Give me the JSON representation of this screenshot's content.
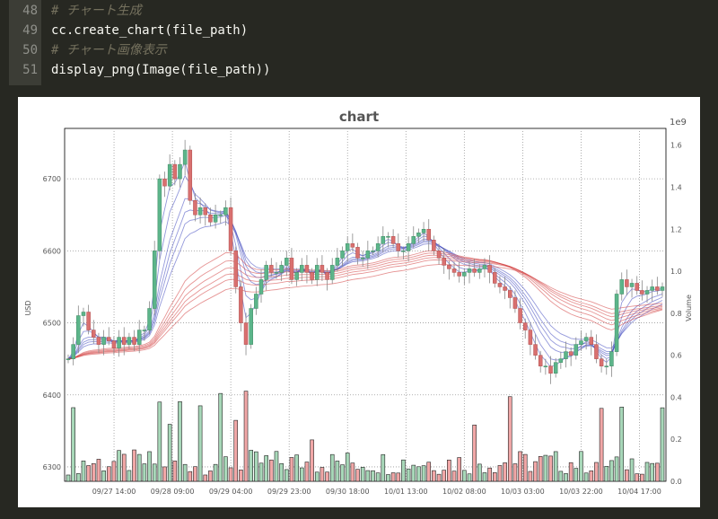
{
  "code": {
    "lines": [
      {
        "num": "48",
        "text": "# チャート生成",
        "comment": true
      },
      {
        "num": "49",
        "text": "cc.create_chart(file_path)",
        "comment": false
      },
      {
        "num": "50",
        "text": "# チャート画像表示",
        "comment": true
      },
      {
        "num": "51",
        "text": "display_png(Image(file_path))",
        "comment": false
      }
    ]
  },
  "chart_data": {
    "type": "line",
    "title": "chart",
    "ylabel": "USD",
    "y2label": "Volume",
    "y2_multiplier": "1e9",
    "ylim": [
      6280,
      6770
    ],
    "y2lim": [
      0,
      1.68
    ],
    "yticks": [
      "6300",
      "6400",
      "6500",
      "6600",
      "6700"
    ],
    "y2ticks": [
      "0.0",
      "0.2",
      "0.4",
      "0.6",
      "0.8",
      "1.0",
      "1.2",
      "1.4",
      "1.6"
    ],
    "xticks": [
      "09/27 14:00",
      "09/28 09:00",
      "09/29 04:00",
      "09/29 23:00",
      "09/30 18:00",
      "10/01 13:00",
      "10/02 08:00",
      "10/03 03:00",
      "10/03 22:00",
      "10/04 17:00"
    ],
    "grid": true,
    "series": [
      {
        "values": [
          6450,
          6470,
          6510,
          6515,
          6490,
          6480,
          6470,
          6480,
          6475,
          6465,
          6480,
          6470,
          6480,
          6470,
          6490,
          6490,
          6520,
          6600,
          6700,
          6690,
          6720,
          6700,
          6720,
          6740,
          6670,
          6650,
          6660,
          6650,
          6640,
          6650,
          6650,
          6660,
          6600,
          6550,
          6500,
          6470,
          6520,
          6540,
          6560,
          6580,
          6570,
          6570,
          6580,
          6590,
          6560,
          6570,
          6580,
          6570,
          6560,
          6580,
          6570,
          6560,
          6580,
          6590,
          6600,
          6610,
          6605,
          6590,
          6590,
          6600,
          6600,
          6610,
          6620,
          6620,
          6610,
          6600,
          6600,
          6610,
          6620,
          6625,
          6630,
          6615,
          6600,
          6590,
          6580,
          6575,
          6570,
          6565,
          6570,
          6575,
          6570,
          6575,
          6580,
          6570,
          6555,
          6550,
          6545,
          6535,
          6520,
          6500,
          6490,
          6470,
          6455,
          6440,
          6440,
          6430,
          6445,
          6450,
          6460,
          6455,
          6470,
          6475,
          6480,
          6470,
          6450,
          6440,
          6440,
          6460,
          6540,
          6560,
          6550,
          6555,
          6545,
          6540,
          6545,
          6550,
          6545,
          6550
        ]
      }
    ]
  }
}
